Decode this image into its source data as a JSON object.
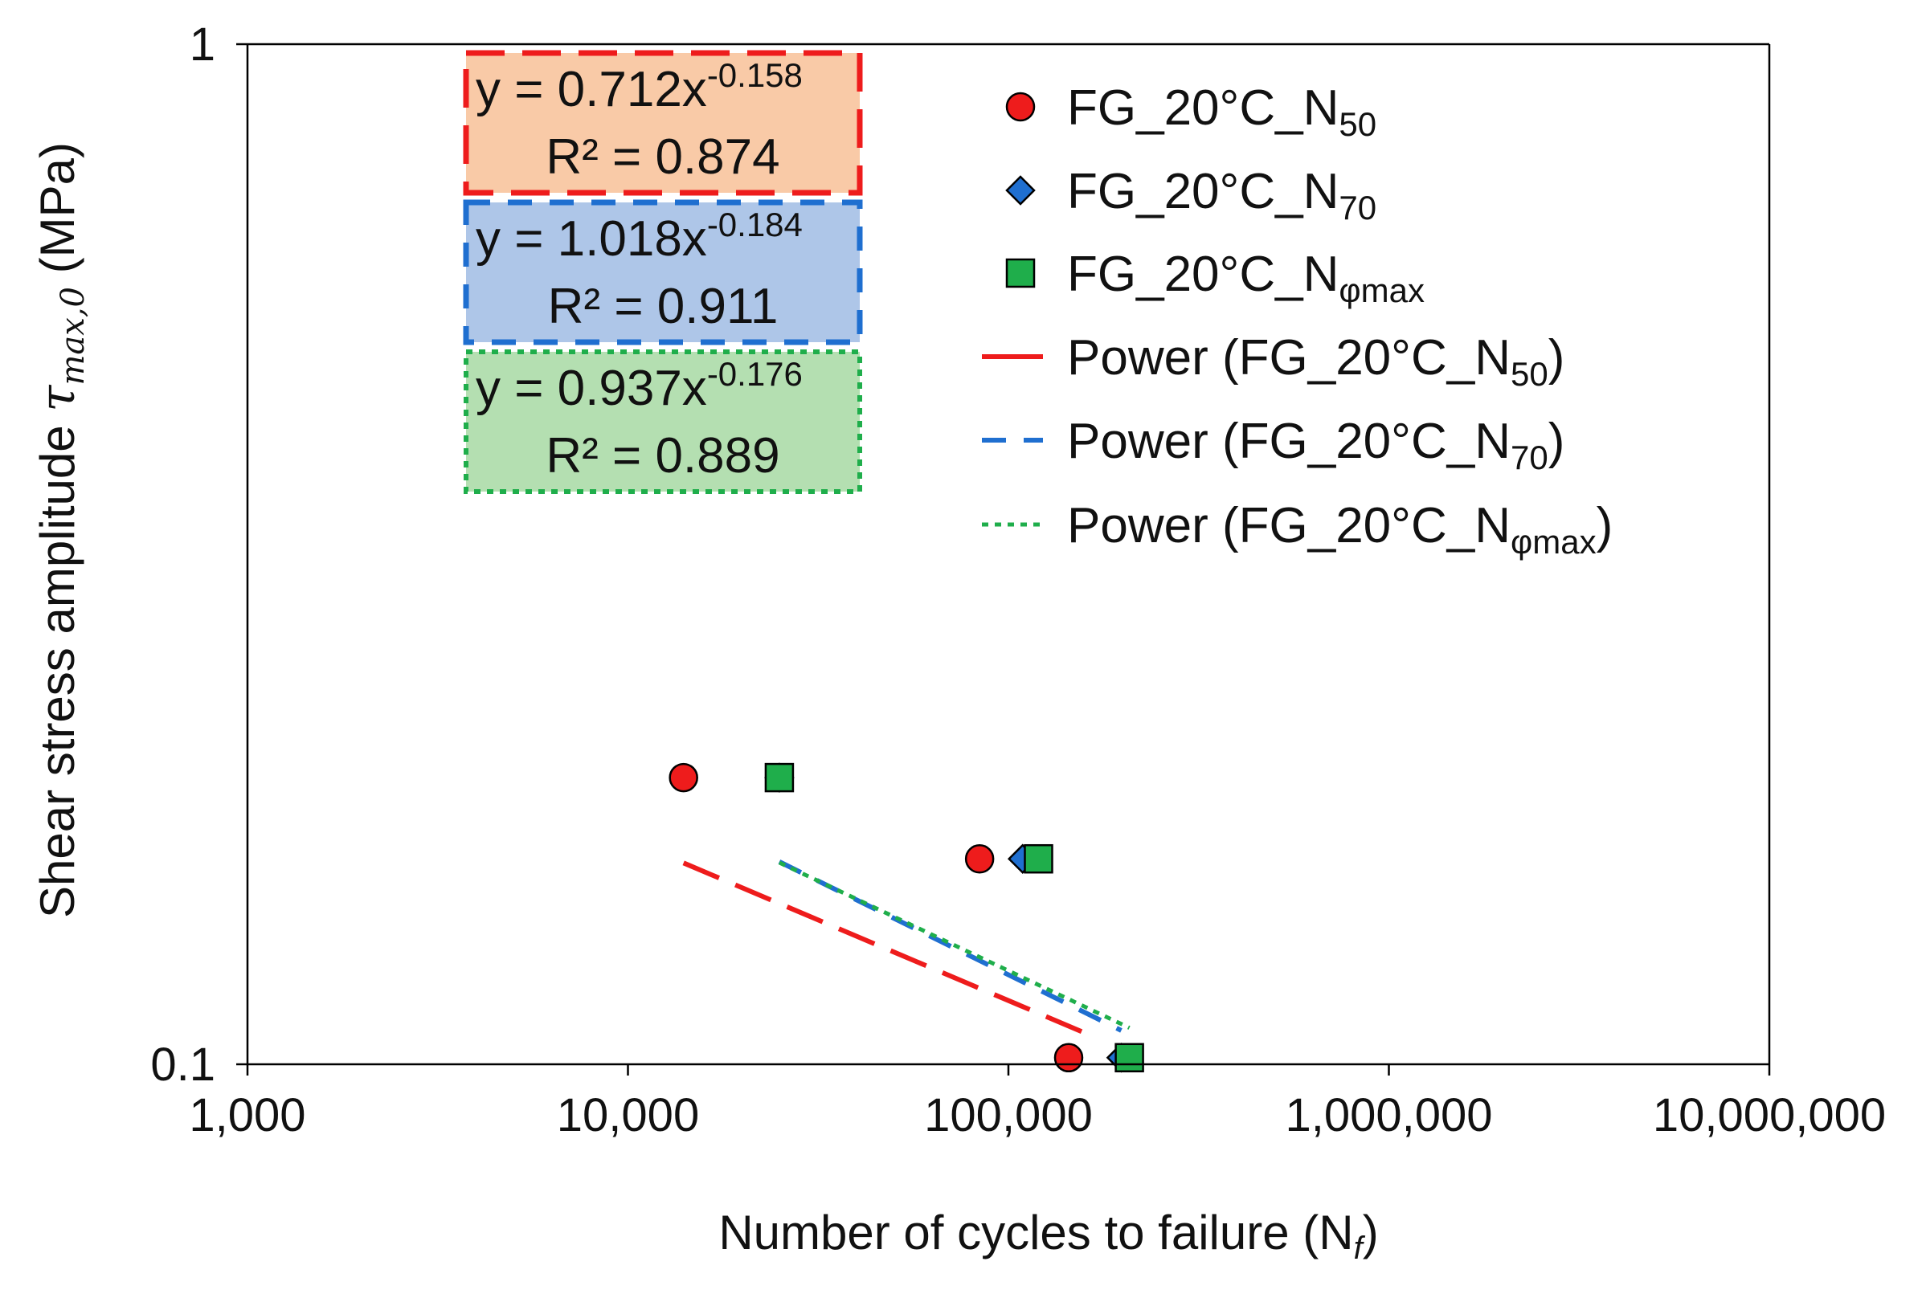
{
  "chart_data": {
    "type": "scatter",
    "xscale": "log",
    "yscale": "log",
    "xlim": [
      1000,
      10000000
    ],
    "ylim": [
      0.1,
      1
    ],
    "x_ticks": [
      "1,000",
      "10,000",
      "100,000",
      "1,000,000",
      "10,000,000"
    ],
    "x_tick_values": [
      1000,
      10000,
      100000,
      1000000,
      10000000
    ],
    "y_ticks": [
      "0.1",
      "1"
    ],
    "y_tick_values": [
      0.1,
      1
    ],
    "xlabel": {
      "main": "Number of cycles to failure (N",
      "sub": "f",
      "tail": ")"
    },
    "ylabel": {
      "main": "Shear stress amplitude ",
      "tau": "τ",
      "sub": "max,0",
      "tail": " (MPa)"
    },
    "series": [
      {
        "key": "n50",
        "name_main": "FG_20°C_N",
        "name_sub": "50",
        "marker": "circle",
        "color": "#ee1c1c",
        "x": [
          14000,
          84000,
          144000
        ],
        "y": [
          0.191,
          0.159,
          0.1015
        ]
      },
      {
        "key": "n70",
        "name_main": "FG_20°C_N",
        "name_sub": "70",
        "marker": "diamond",
        "color": "#1f6fd0",
        "x": [
          25000,
          109000,
          198000
        ],
        "y": [
          0.191,
          0.159,
          0.1015
        ]
      },
      {
        "key": "nphi",
        "name_main": "FG_20°C_N",
        "name_sub": "φmax",
        "marker": "square",
        "color": "#1fae4b",
        "x": [
          25000,
          120000,
          208000
        ],
        "y": [
          0.191,
          0.159,
          0.1015
        ]
      }
    ],
    "trendlines": [
      {
        "key": "n50",
        "name_main": "Power (FG_20°C_N",
        "name_sub": "50",
        "name_tail": ")",
        "color": "#ee1c1c",
        "dash": "long",
        "coef": 0.712,
        "exp": -0.158,
        "x_range": [
          14000,
          170000
        ]
      },
      {
        "key": "n70",
        "name_main": "Power (FG_20°C_N",
        "name_sub": "70",
        "name_tail": ")",
        "color": "#1f6fd0",
        "dash": "medium",
        "coef": 1.018,
        "exp": -0.184,
        "x_range": [
          25000,
          198000
        ]
      },
      {
        "key": "nphi",
        "name_main": "Power (FG_20°C_N",
        "name_sub": "φmax",
        "name_tail": ")",
        "color": "#1fae4b",
        "dash": "dotted",
        "coef": 0.937,
        "exp": -0.176,
        "x_range": [
          25000,
          208000
        ]
      }
    ],
    "equation_boxes": [
      {
        "key": "n50",
        "eq_main": "y = 0.712x",
        "eq_exp": "-0.158",
        "r2": "R² = 0.874",
        "fill": "#f9caa7",
        "border": "#ee1c1c",
        "dash": "long"
      },
      {
        "key": "n70",
        "eq_main": "y = 1.018x",
        "eq_exp": "-0.184",
        "r2": "R² = 0.911",
        "fill": "#aec6e8",
        "border": "#1f6fd0",
        "dash": "medium"
      },
      {
        "key": "nphi",
        "eq_main": "y = 0.937x",
        "eq_exp": "-0.176",
        "r2": "R² = 0.889",
        "fill": "#b4dfb1",
        "border": "#1fae4b",
        "dash": "dotted"
      }
    ],
    "legend_position": "top-right inside plot"
  }
}
